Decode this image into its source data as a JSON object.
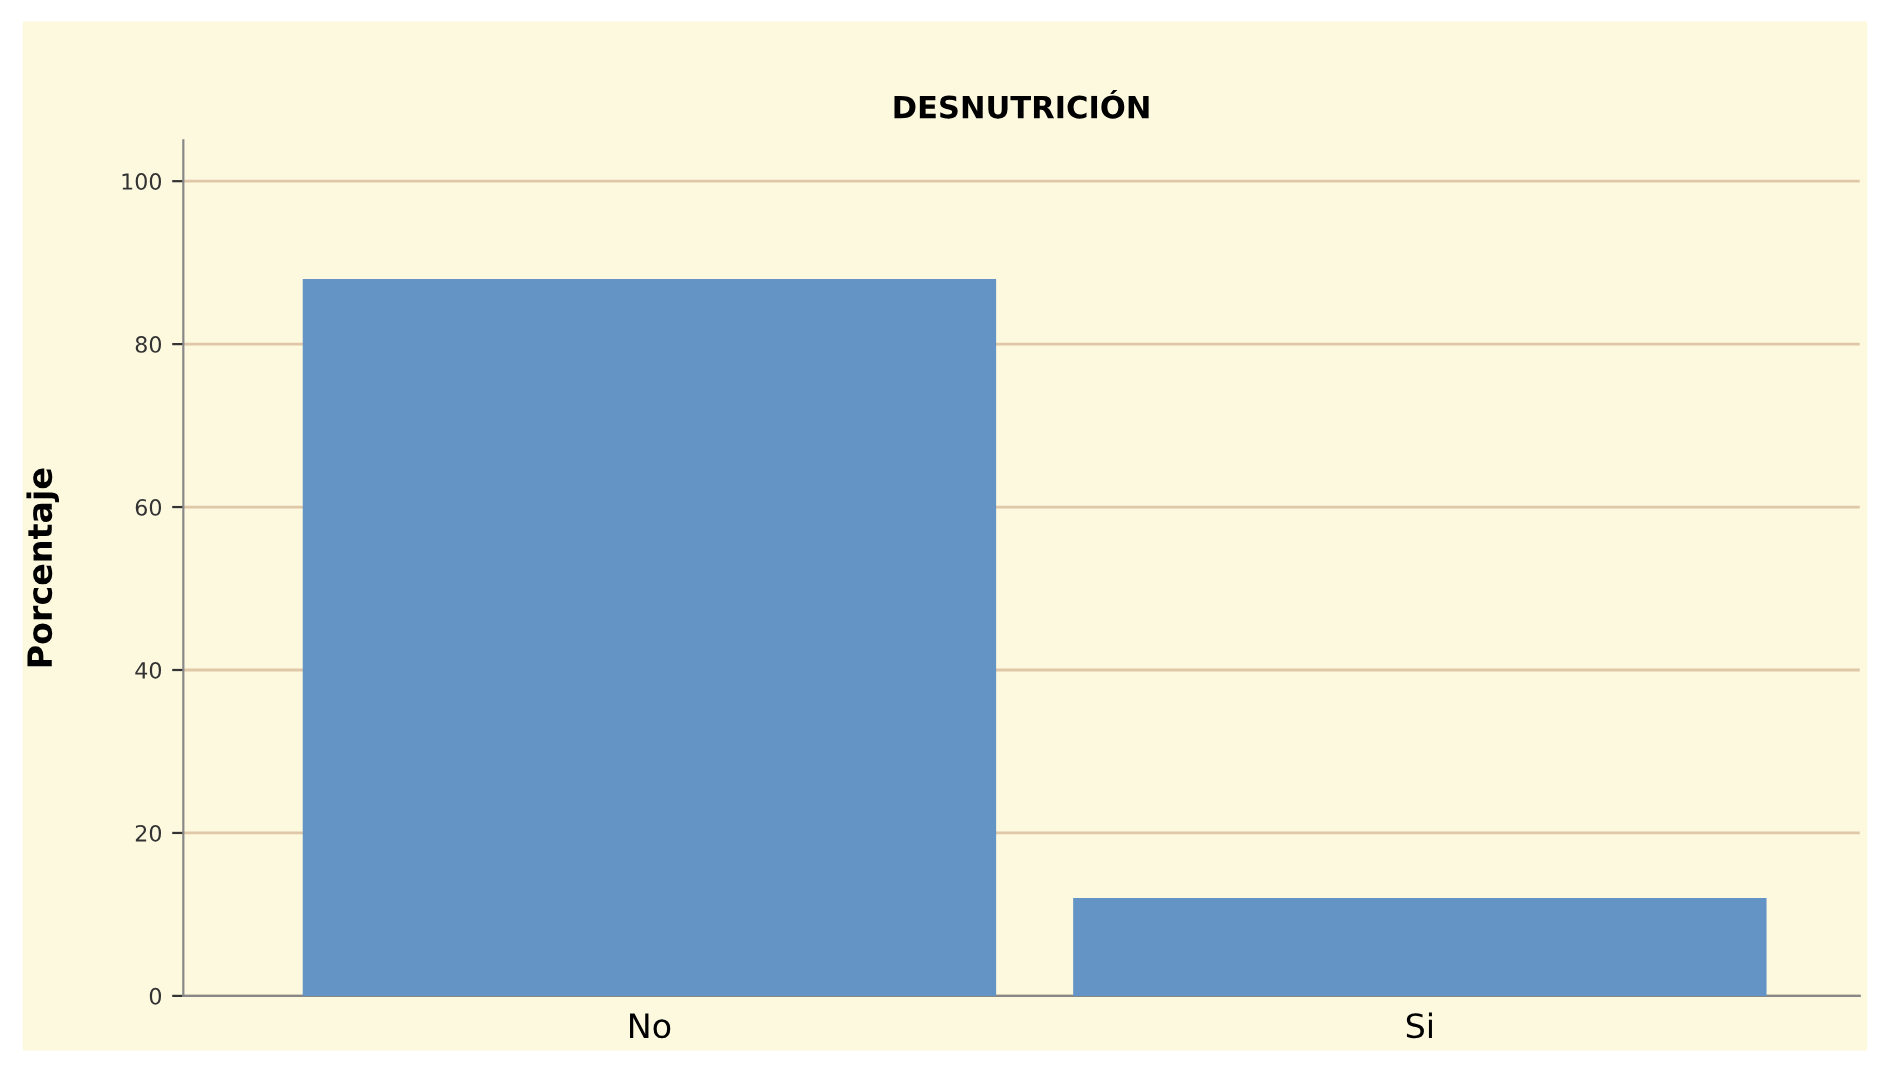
{
  "chart_data": {
    "type": "bar",
    "title": "DESNUTRICIÓN",
    "ylabel": "Porcentaje",
    "categories": [
      "No",
      "Si"
    ],
    "values": [
      88,
      12
    ],
    "color": "#6494c6",
    "ylim": [
      0,
      105
    ],
    "yticks": [
      0,
      20,
      40,
      60,
      80,
      100
    ],
    "grid": "y",
    "legend": false
  }
}
